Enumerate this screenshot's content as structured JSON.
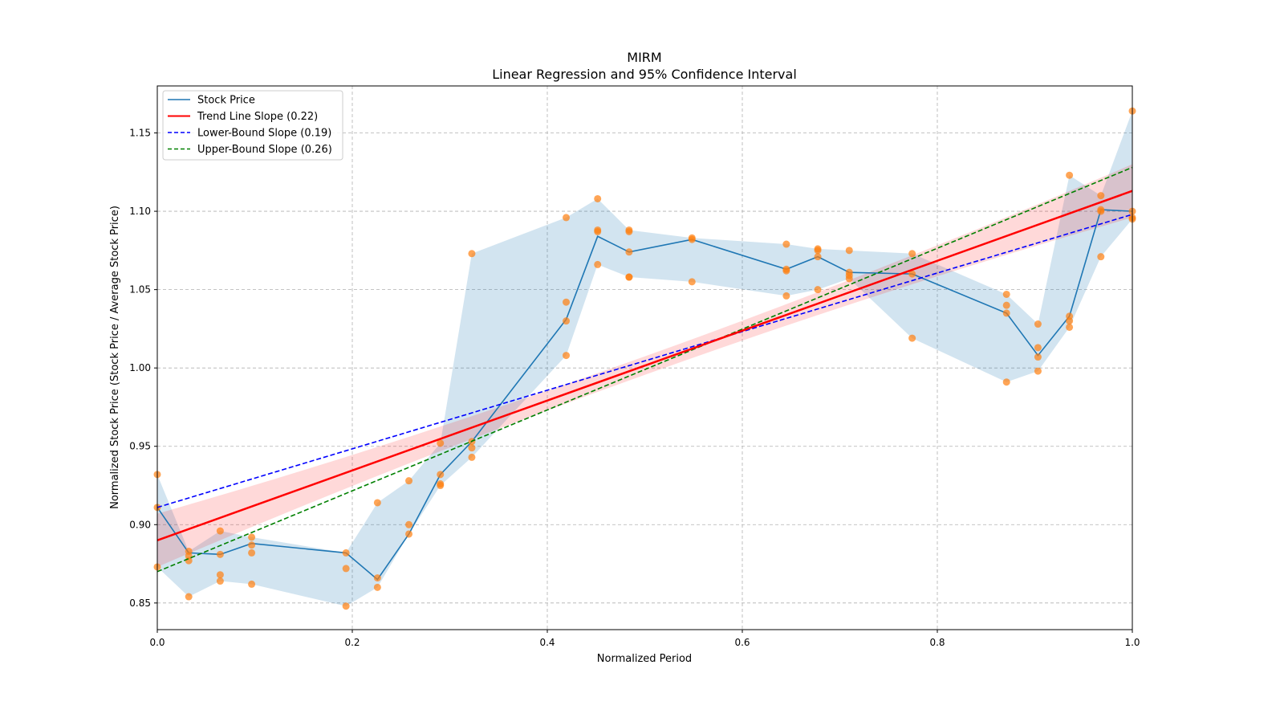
{
  "chart_data": {
    "type": "line",
    "title": "MIRM",
    "subtitle": "Linear Regression and 95% Confidence Interval",
    "xlabel": "Normalized Period",
    "ylabel": "Normalized Stock Price (Stock Price / Average Stock Price)",
    "xlim": [
      0,
      1
    ],
    "ylim": [
      0.833,
      1.18
    ],
    "grid": true,
    "legend_position": "top-left",
    "xticks": [
      0.0,
      0.2,
      0.4,
      0.6,
      0.8,
      1.0
    ],
    "xtick_labels": [
      "0.0",
      "0.2",
      "0.4",
      "0.6",
      "0.8",
      "1.0"
    ],
    "yticks": [
      0.85,
      0.9,
      0.95,
      1.0,
      1.05,
      1.1,
      1.15
    ],
    "ytick_labels": [
      "0.85",
      "0.90",
      "0.95",
      "1.00",
      "1.05",
      "1.10",
      "1.15"
    ],
    "legend": [
      "Stock Price",
      "Trend Line Slope (0.22)",
      "Lower-Bound Slope (0.19)",
      "Upper-Bound Slope (0.26)"
    ],
    "colors": {
      "stock": "#1f77b4",
      "band": "#1f77b4",
      "scatter": "#ff7f0e",
      "trend": "#ff0000",
      "trend_ci": "#ff0000",
      "lower": "#0000ff",
      "upper": "#008000"
    },
    "stock_price": {
      "x_index": [
        0,
        1,
        2,
        3,
        6,
        7,
        8,
        9,
        10,
        13,
        14,
        15,
        17,
        20,
        21,
        22,
        24,
        27,
        28,
        29,
        30,
        31
      ],
      "x_denominator": 31,
      "y": [
        0.911,
        0.882,
        0.881,
        0.888,
        0.882,
        0.865,
        0.894,
        0.932,
        0.953,
        1.031,
        1.084,
        1.074,
        1.082,
        1.063,
        1.071,
        1.061,
        1.06,
        1.035,
        1.008,
        1.033,
        1.101,
        1.1
      ]
    },
    "scatter": [
      [
        0.932,
        0.911,
        0.873
      ],
      [
        0.883,
        0.88,
        0.877,
        0.854
      ],
      [
        0.896,
        0.881,
        0.868,
        0.864
      ],
      [
        0.892,
        0.887,
        0.882,
        0.862
      ],
      [
        0.882,
        0.872,
        0.848
      ],
      [
        0.914,
        0.866,
        0.86
      ],
      [
        0.928,
        0.9,
        0.894
      ],
      [
        0.952,
        0.932,
        0.926,
        0.925
      ],
      [
        1.073,
        0.953,
        0.949,
        0.943
      ],
      [
        1.096,
        1.042,
        1.03,
        1.008
      ],
      [
        1.108,
        1.088,
        1.087,
        1.066
      ],
      [
        1.088,
        1.087,
        1.074,
        1.058,
        1.058
      ],
      [
        1.083,
        1.082,
        1.055
      ],
      [
        1.079,
        1.063,
        1.062,
        1.046
      ],
      [
        1.076,
        1.075,
        1.071,
        1.05
      ],
      [
        1.075,
        1.061,
        1.059,
        1.057
      ],
      [
        1.073,
        1.06,
        1.019
      ],
      [
        1.047,
        1.04,
        1.035,
        0.991
      ],
      [
        1.028,
        1.013,
        1.007,
        0.998
      ],
      [
        1.123,
        1.033,
        1.03,
        1.026
      ],
      [
        1.11,
        1.101,
        1.1,
        1.071
      ],
      [
        1.164,
        1.1,
        1.096,
        1.095
      ]
    ],
    "trend_line": {
      "start": 0.89,
      "end": 1.113,
      "slope": 0.22
    },
    "trend_ci_halfwidth": {
      "x": [
        0,
        0.55,
        1
      ],
      "value": [
        0.017,
        0.006,
        0.017
      ]
    },
    "lower_bound_line": {
      "start": 0.911,
      "end": 1.098,
      "slope": 0.19
    },
    "upper_bound_line": {
      "start": 0.87,
      "end": 1.128,
      "slope": 0.26
    }
  }
}
